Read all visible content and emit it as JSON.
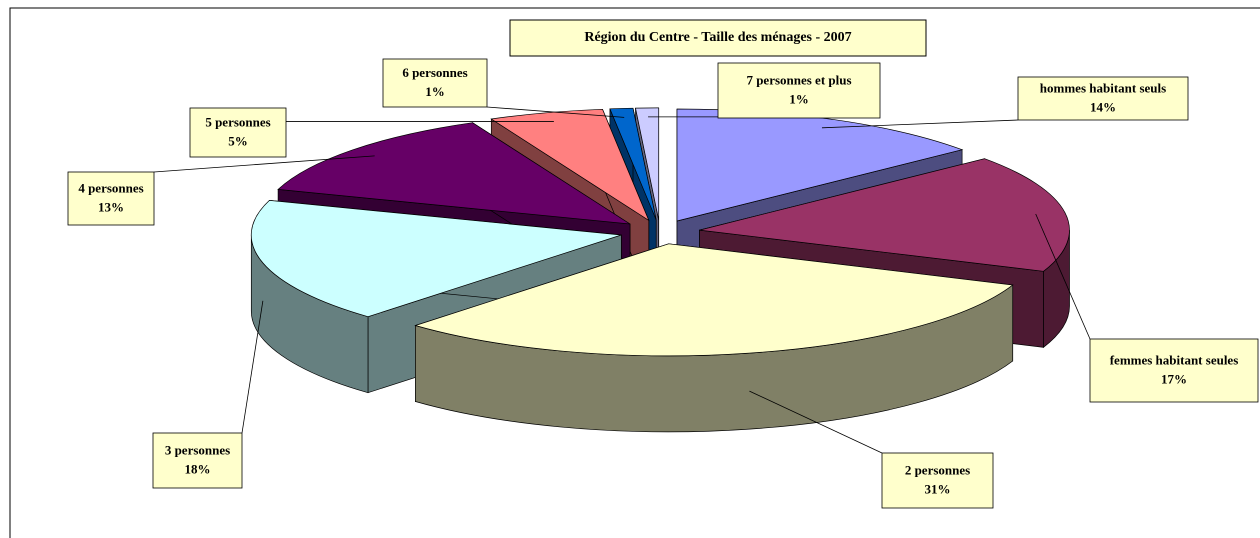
{
  "chart_data": {
    "type": "pie3d",
    "title": "Région du Centre - Taille des ménages - 2007",
    "categories": [
      "hommes habitant seuls",
      "femmes habitant seules",
      "2 personnes",
      "3 personnes",
      "4 personnes",
      "5 personnes",
      "6 personnes",
      "7 personnes et plus"
    ],
    "values": [
      14,
      17,
      31,
      18,
      13,
      5,
      1,
      1
    ],
    "value_labels": [
      "14%",
      "17%",
      "31%",
      "18%",
      "13%",
      "5%",
      "1%",
      "1%"
    ],
    "colors": [
      "#9999ff",
      "#993366",
      "#ffffcc",
      "#ccffff",
      "#660066",
      "#ff8080",
      "#0066cc",
      "#ccccff"
    ]
  }
}
